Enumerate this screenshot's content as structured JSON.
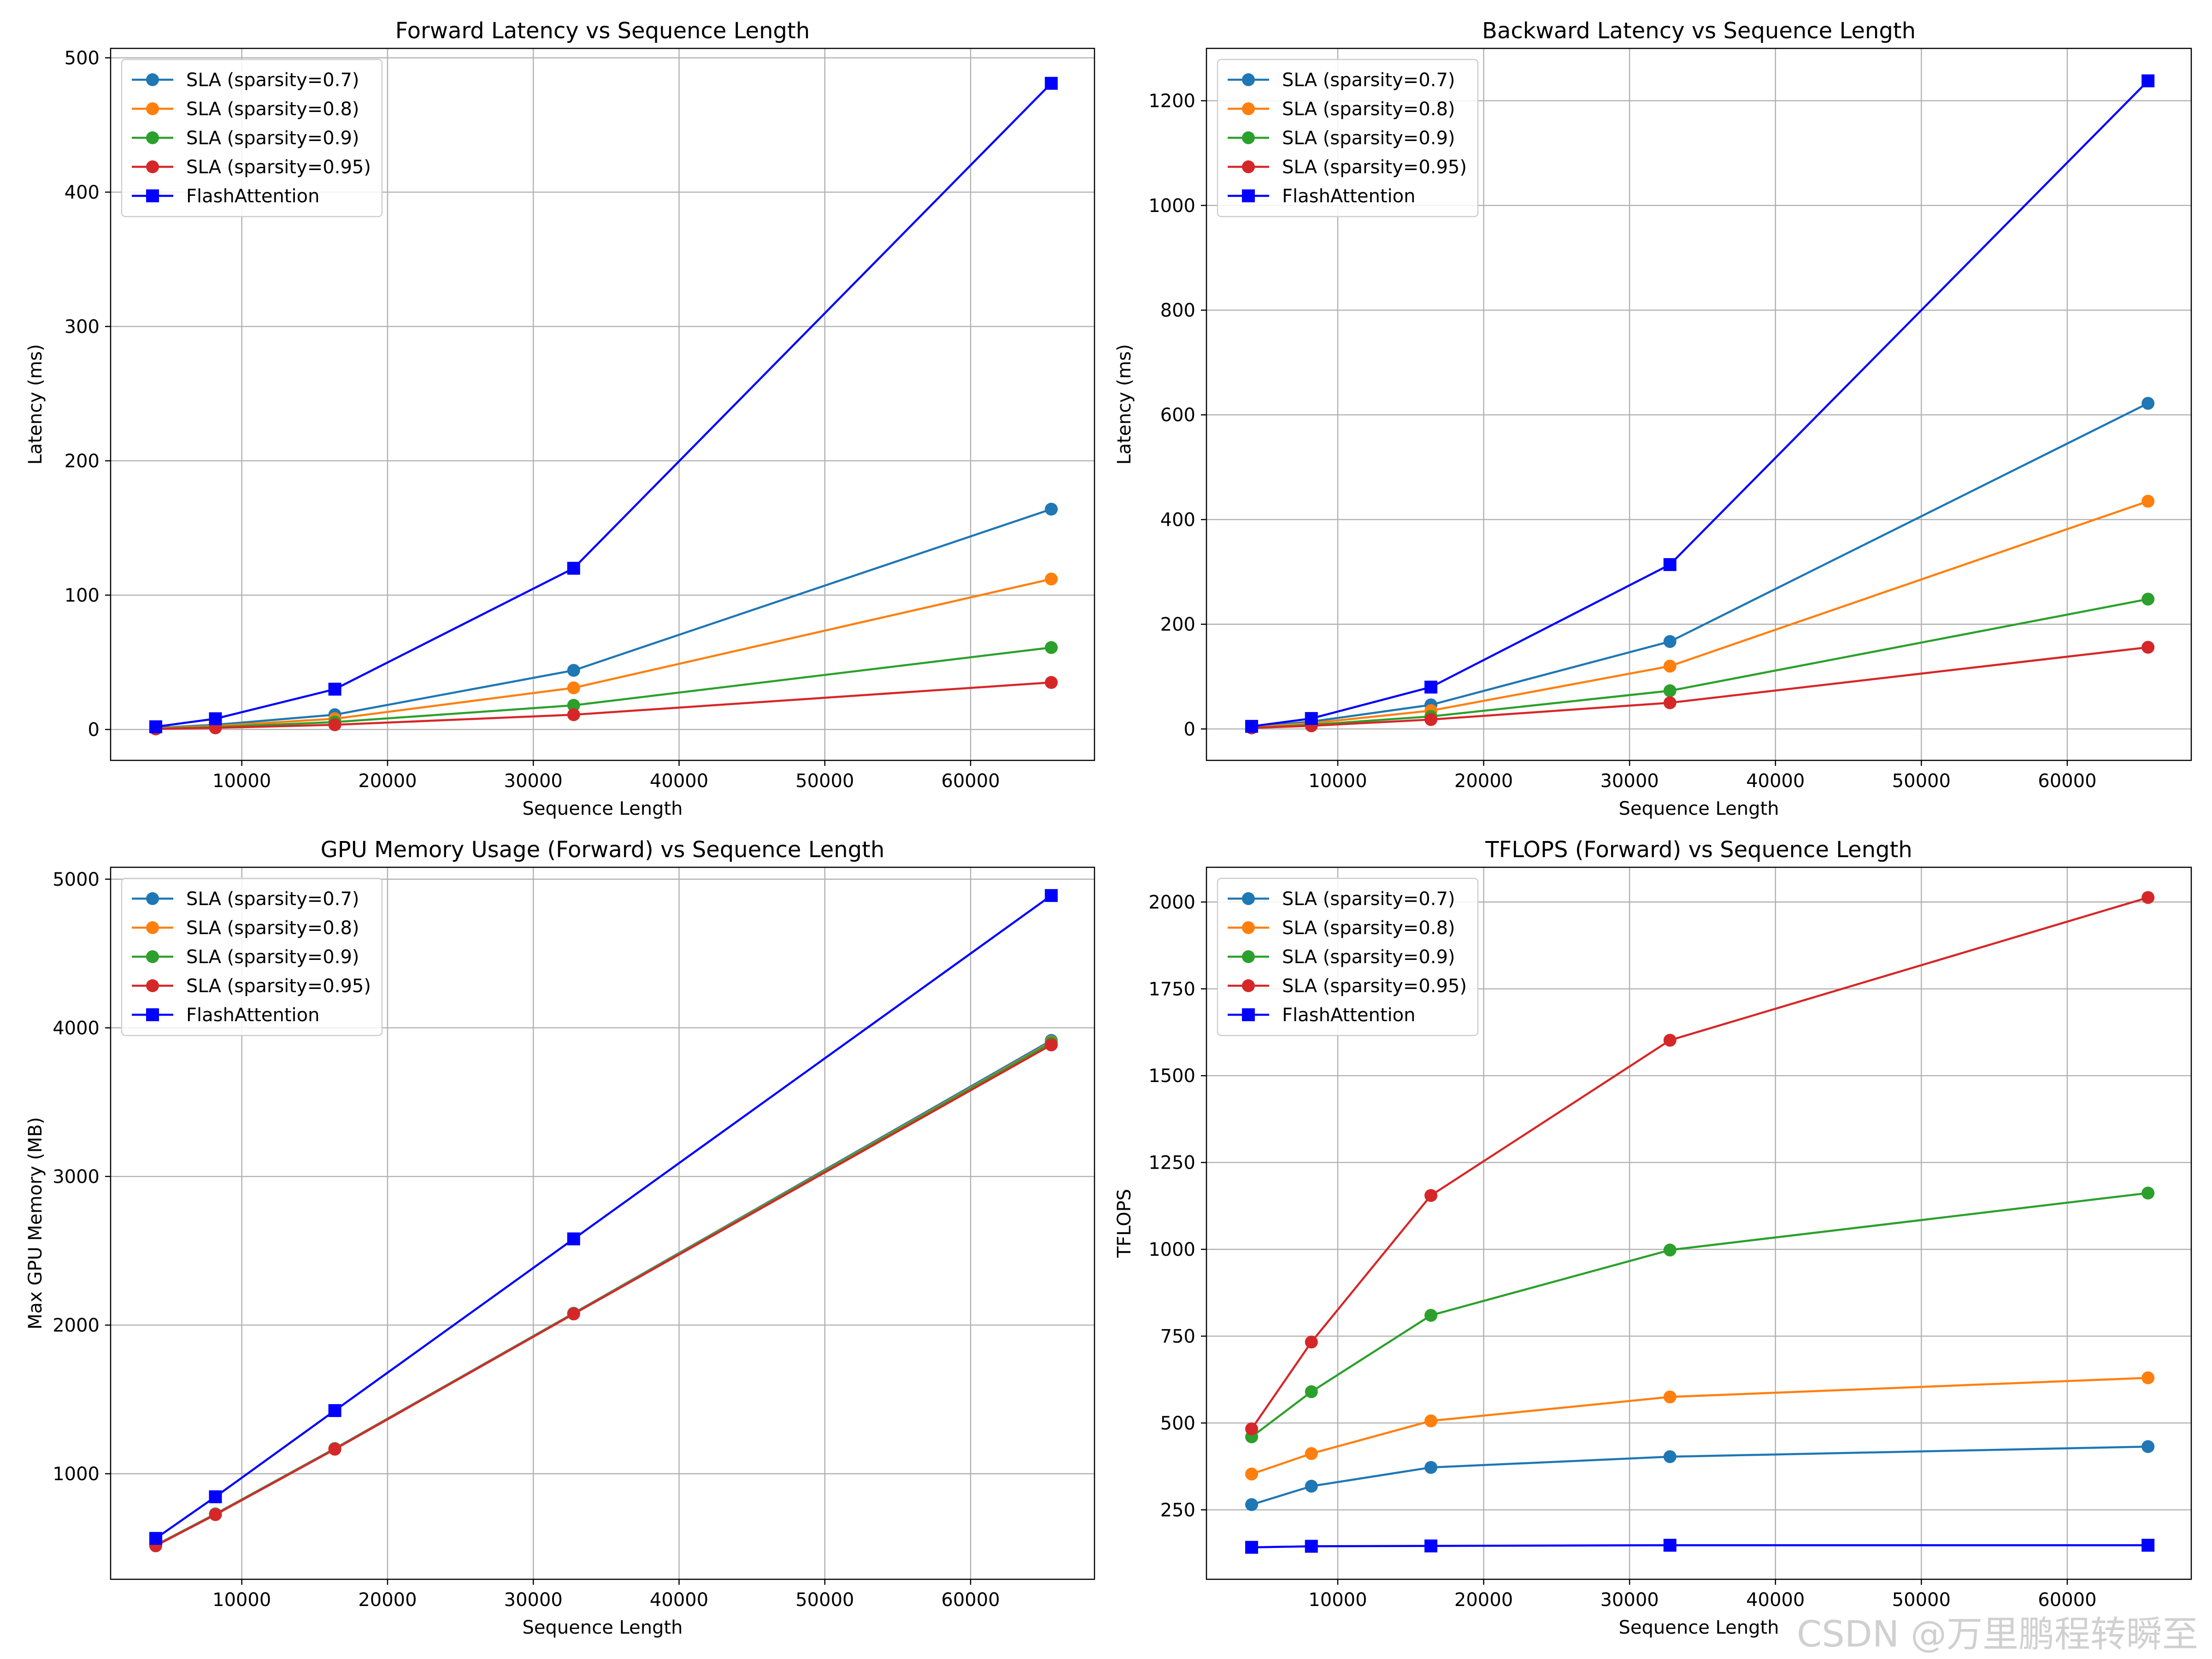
{
  "watermark": "CSDN @万里鹏程转瞬至",
  "chart_data": [
    {
      "type": "line",
      "title": "Forward Latency vs Sequence Length",
      "xlabel": "Sequence Length",
      "ylabel": "Latency (ms)",
      "xlim": [
        1000,
        68500
      ],
      "ylim": [
        -23,
        507
      ],
      "xticks": [
        10000,
        20000,
        30000,
        40000,
        50000,
        60000
      ],
      "yticks": [
        0,
        100,
        200,
        300,
        400,
        500
      ],
      "grid": true,
      "legend": "upper-left",
      "x": [
        4096,
        8192,
        16384,
        32768,
        65536
      ],
      "series": [
        {
          "name": "SLA (sparsity=0.7)",
          "color": "#1f77b4",
          "marker": "circle",
          "values": [
            1.2,
            3.5,
            11,
            44,
            164
          ]
        },
        {
          "name": "SLA (sparsity=0.8)",
          "color": "#ff7f0e",
          "marker": "circle",
          "values": [
            0.9,
            2.6,
            8,
            31,
            112
          ]
        },
        {
          "name": "SLA (sparsity=0.9)",
          "color": "#2ca02c",
          "marker": "circle",
          "values": [
            0.6,
            1.8,
            5.5,
            18,
            61
          ]
        },
        {
          "name": "SLA (sparsity=0.95)",
          "color": "#d62728",
          "marker": "circle",
          "values": [
            0.4,
            1.2,
            3.5,
            11,
            35
          ]
        },
        {
          "name": "FlashAttention",
          "color": "#0000ff",
          "marker": "square",
          "values": [
            2,
            8,
            30,
            120,
            481
          ]
        }
      ]
    },
    {
      "type": "line",
      "title": "Backward Latency vs Sequence Length",
      "xlabel": "Sequence Length",
      "ylabel": "Latency (ms)",
      "xlim": [
        1000,
        68500
      ],
      "ylim": [
        -60,
        1300
      ],
      "xticks": [
        10000,
        20000,
        30000,
        40000,
        50000,
        60000
      ],
      "yticks": [
        0,
        200,
        400,
        600,
        800,
        1000,
        1200
      ],
      "grid": true,
      "legend": "upper-left",
      "x": [
        4096,
        8192,
        16384,
        32768,
        65536
      ],
      "series": [
        {
          "name": "SLA (sparsity=0.7)",
          "color": "#1f77b4",
          "marker": "circle",
          "values": [
            4,
            14,
            46,
            167,
            622
          ]
        },
        {
          "name": "SLA (sparsity=0.8)",
          "color": "#ff7f0e",
          "marker": "circle",
          "values": [
            3,
            11,
            35,
            120,
            435
          ]
        },
        {
          "name": "SLA (sparsity=0.9)",
          "color": "#2ca02c",
          "marker": "circle",
          "values": [
            2,
            8,
            24,
            73,
            248
          ]
        },
        {
          "name": "SLA (sparsity=0.95)",
          "color": "#d62728",
          "marker": "circle",
          "values": [
            2,
            6,
            18,
            50,
            156
          ]
        },
        {
          "name": "FlashAttention",
          "color": "#0000ff",
          "marker": "square",
          "values": [
            5,
            20,
            80,
            314,
            1238
          ]
        }
      ]
    },
    {
      "type": "line",
      "title": "GPU Memory Usage (Forward) vs Sequence Length",
      "xlabel": "Sequence Length",
      "ylabel": "Max GPU Memory (MB)",
      "xlim": [
        1000,
        68500
      ],
      "ylim": [
        290,
        5080
      ],
      "xticks": [
        10000,
        20000,
        30000,
        40000,
        50000,
        60000
      ],
      "yticks": [
        1000,
        2000,
        3000,
        4000,
        5000
      ],
      "grid": true,
      "legend": "upper-left",
      "x": [
        4096,
        8192,
        16384,
        32768,
        65536
      ],
      "series": [
        {
          "name": "SLA (sparsity=0.7)",
          "color": "#1f77b4",
          "marker": "circle",
          "values": [
            520,
            730,
            1170,
            2080,
            3915
          ]
        },
        {
          "name": "SLA (sparsity=0.8)",
          "color": "#ff7f0e",
          "marker": "circle",
          "values": [
            518,
            728,
            1168,
            2078,
            3905
          ]
        },
        {
          "name": "SLA (sparsity=0.9)",
          "color": "#2ca02c",
          "marker": "circle",
          "values": [
            517,
            727,
            1167,
            2077,
            3900
          ]
        },
        {
          "name": "SLA (sparsity=0.95)",
          "color": "#d62728",
          "marker": "circle",
          "values": [
            515,
            725,
            1165,
            2075,
            3885
          ]
        },
        {
          "name": "FlashAttention",
          "color": "#0000ff",
          "marker": "square",
          "values": [
            565,
            845,
            1425,
            2580,
            4890
          ]
        }
      ]
    },
    {
      "type": "line",
      "title": "TFLOPS (Forward) vs Sequence Length",
      "xlabel": "Sequence Length",
      "ylabel": "TFLOPS",
      "xlim": [
        1000,
        68500
      ],
      "ylim": [
        50,
        2100
      ],
      "xticks": [
        10000,
        20000,
        30000,
        40000,
        50000,
        60000
      ],
      "yticks": [
        250,
        500,
        750,
        1000,
        1250,
        1500,
        1750,
        2000
      ],
      "grid": true,
      "legend": "upper-left",
      "x": [
        4096,
        8192,
        16384,
        32768,
        65536
      ],
      "series": [
        {
          "name": "SLA (sparsity=0.7)",
          "color": "#1f77b4",
          "marker": "circle",
          "values": [
            265,
            318,
            372,
            403,
            432
          ]
        },
        {
          "name": "SLA (sparsity=0.8)",
          "color": "#ff7f0e",
          "marker": "circle",
          "values": [
            353,
            412,
            506,
            575,
            630
          ]
        },
        {
          "name": "SLA (sparsity=0.9)",
          "color": "#2ca02c",
          "marker": "circle",
          "values": [
            460,
            590,
            810,
            998,
            1162
          ]
        },
        {
          "name": "SLA (sparsity=0.95)",
          "color": "#d62728",
          "marker": "circle",
          "values": [
            483,
            733,
            1155,
            1602,
            2013
          ]
        },
        {
          "name": "FlashAttention",
          "color": "#0000ff",
          "marker": "square",
          "values": [
            142,
            145,
            146,
            148,
            148
          ]
        }
      ]
    }
  ]
}
